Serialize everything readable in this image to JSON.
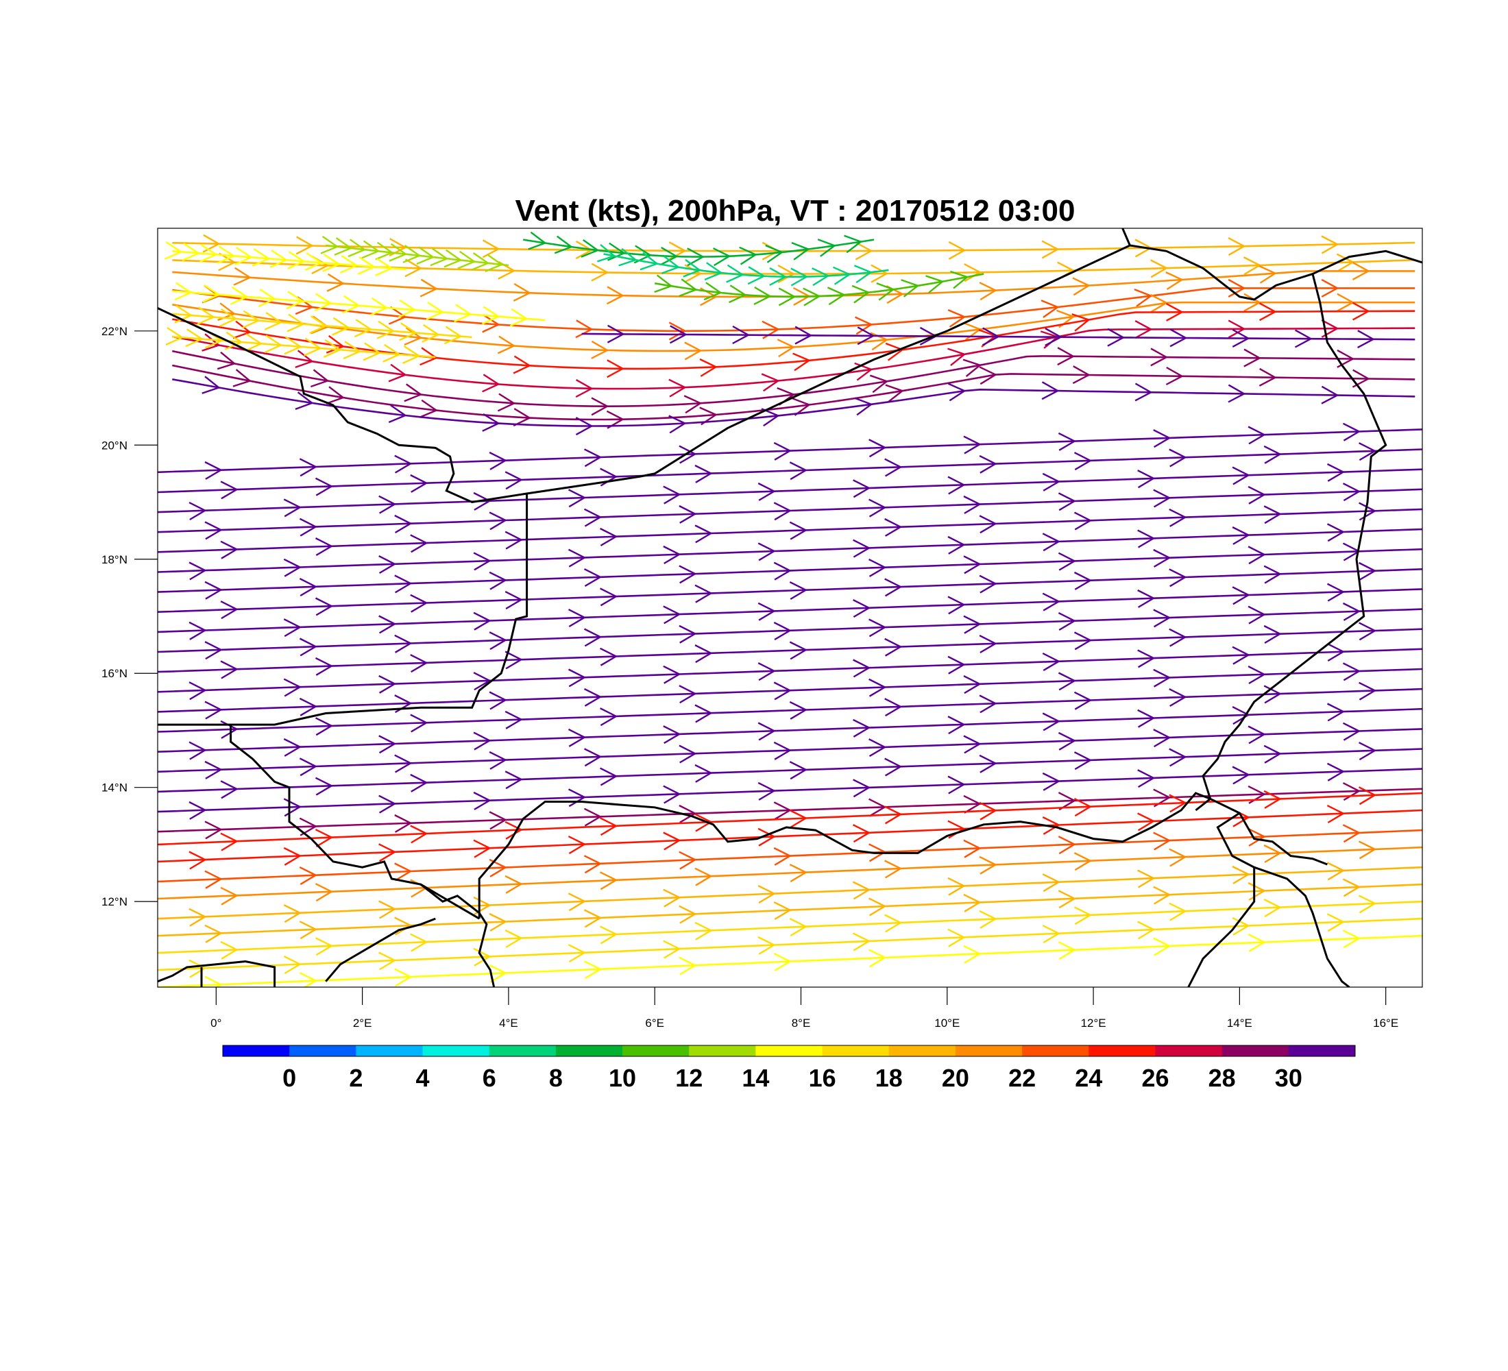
{
  "title": "Vent (kts), 200hPa, VT : 20170512  03:00",
  "map": {
    "lon_range": [
      -0.8,
      16.5
    ],
    "lat_range": [
      10.5,
      23.8
    ],
    "lon_ticks": [
      {
        "value": 0,
        "label": "0°"
      },
      {
        "value": 2,
        "label": "2°E"
      },
      {
        "value": 4,
        "label": "4°E"
      },
      {
        "value": 6,
        "label": "6°E"
      },
      {
        "value": 8,
        "label": "8°E"
      },
      {
        "value": 10,
        "label": "10°E"
      },
      {
        "value": 12,
        "label": "12°E"
      },
      {
        "value": 14,
        "label": "14°E"
      },
      {
        "value": 16,
        "label": "16°E"
      }
    ],
    "lat_ticks": [
      {
        "value": 12,
        "label": "12°N"
      },
      {
        "value": 14,
        "label": "14°N"
      },
      {
        "value": 16,
        "label": "16°N"
      },
      {
        "value": 18,
        "label": "18°N"
      },
      {
        "value": 20,
        "label": "20°N"
      },
      {
        "value": 22,
        "label": "22°N"
      }
    ],
    "borders": [
      [
        [
          -0.8,
          22.4
        ],
        [
          0.2,
          21.8
        ],
        [
          1.15,
          21.2
        ],
        [
          1.2,
          20.9
        ],
        [
          1.6,
          20.7
        ],
        [
          1.8,
          20.4
        ],
        [
          2.2,
          20.2
        ],
        [
          2.5,
          20.0
        ],
        [
          3.0,
          19.95
        ],
        [
          3.2,
          19.8
        ],
        [
          3.25,
          19.5
        ],
        [
          3.15,
          19.2
        ],
        [
          3.5,
          19.0
        ],
        [
          4.25,
          19.15
        ],
        [
          5.3,
          19.35
        ],
        [
          5.8,
          19.45
        ],
        [
          6.0,
          19.5
        ],
        [
          7.0,
          20.3
        ],
        [
          8.0,
          20.9
        ],
        [
          9.0,
          21.5
        ],
        [
          10.0,
          22.0
        ],
        [
          11.0,
          22.6
        ],
        [
          12.0,
          23.2
        ],
        [
          12.5,
          23.5
        ],
        [
          13.0,
          23.4
        ],
        [
          13.5,
          23.1
        ],
        [
          14.0,
          22.6
        ],
        [
          14.2,
          22.55
        ],
        [
          14.5,
          22.8
        ],
        [
          15.0,
          23.0
        ],
        [
          15.5,
          23.3
        ],
        [
          16.0,
          23.4
        ],
        [
          16.5,
          23.2
        ]
      ],
      [
        [
          12.5,
          23.5
        ],
        [
          12.4,
          23.8
        ]
      ],
      [
        [
          15.0,
          23.0
        ],
        [
          15.1,
          22.5
        ],
        [
          15.2,
          21.8
        ],
        [
          15.4,
          21.4
        ],
        [
          15.7,
          20.9
        ],
        [
          15.9,
          20.3
        ],
        [
          16.0,
          20.0
        ],
        [
          15.8,
          19.8
        ],
        [
          15.75,
          19.0
        ],
        [
          15.6,
          18.0
        ],
        [
          15.7,
          17.0
        ],
        [
          15.5,
          16.8
        ],
        [
          15.0,
          16.3
        ],
        [
          14.5,
          15.8
        ],
        [
          14.2,
          15.5
        ],
        [
          14.0,
          15.1
        ],
        [
          13.8,
          14.8
        ],
        [
          13.7,
          14.5
        ],
        [
          13.5,
          14.2
        ],
        [
          13.6,
          13.8
        ],
        [
          13.4,
          13.6
        ]
      ],
      [
        [
          4.25,
          19.15
        ],
        [
          4.25,
          18.5
        ],
        [
          4.25,
          17.5
        ],
        [
          4.25,
          17.0
        ],
        [
          4.1,
          16.95
        ],
        [
          4.0,
          16.4
        ],
        [
          3.9,
          16.0
        ],
        [
          3.6,
          15.7
        ],
        [
          3.5,
          15.4
        ],
        [
          2.8,
          15.4
        ],
        [
          1.5,
          15.3
        ],
        [
          0.8,
          15.1
        ],
        [
          -0.1,
          15.1
        ],
        [
          -0.8,
          15.1
        ]
      ],
      [
        [
          0.2,
          15.1
        ],
        [
          0.2,
          14.8
        ],
        [
          0.5,
          14.5
        ],
        [
          0.8,
          14.1
        ],
        [
          1.0,
          14.0
        ],
        [
          1.0,
          13.4
        ],
        [
          1.3,
          13.1
        ],
        [
          1.6,
          12.7
        ],
        [
          2.0,
          12.6
        ],
        [
          2.3,
          12.7
        ],
        [
          2.4,
          12.4
        ],
        [
          2.8,
          12.3
        ],
        [
          3.1,
          12.0
        ],
        [
          3.3,
          12.1
        ],
        [
          3.6,
          11.8
        ],
        [
          3.7,
          11.6
        ],
        [
          3.6,
          11.1
        ],
        [
          3.75,
          10.8
        ],
        [
          3.8,
          10.5
        ]
      ],
      [
        [
          3.6,
          11.7
        ],
        [
          3.2,
          12.0
        ],
        [
          2.8,
          12.3
        ]
      ],
      [
        [
          3.6,
          11.7
        ],
        [
          3.6,
          12.4
        ],
        [
          4.0,
          13.0
        ],
        [
          4.2,
          13.45
        ],
        [
          4.5,
          13.75
        ],
        [
          5.0,
          13.75
        ],
        [
          5.5,
          13.7
        ],
        [
          6.0,
          13.65
        ],
        [
          6.5,
          13.5
        ],
        [
          6.8,
          13.35
        ],
        [
          7.0,
          13.05
        ],
        [
          7.4,
          13.1
        ],
        [
          7.8,
          13.3
        ],
        [
          8.2,
          13.25
        ],
        [
          8.7,
          12.9
        ],
        [
          9.0,
          12.85
        ],
        [
          9.6,
          12.85
        ],
        [
          10.0,
          13.15
        ],
        [
          10.5,
          13.35
        ],
        [
          11.0,
          13.4
        ],
        [
          11.5,
          13.3
        ],
        [
          12.0,
          13.1
        ],
        [
          12.4,
          13.05
        ],
        [
          12.8,
          13.3
        ],
        [
          13.2,
          13.6
        ],
        [
          13.4,
          13.9
        ],
        [
          13.6,
          13.8
        ]
      ],
      [
        [
          13.6,
          13.8
        ],
        [
          14.0,
          13.55
        ],
        [
          14.2,
          13.1
        ],
        [
          14.45,
          13.05
        ],
        [
          14.7,
          12.8
        ],
        [
          15.0,
          12.75
        ],
        [
          15.2,
          12.65
        ]
      ],
      [
        [
          14.0,
          13.55
        ],
        [
          13.7,
          13.3
        ],
        [
          13.9,
          12.8
        ],
        [
          14.2,
          12.6
        ],
        [
          14.65,
          12.4
        ],
        [
          14.9,
          12.1
        ],
        [
          15.0,
          11.8
        ],
        [
          15.2,
          11.0
        ],
        [
          15.4,
          10.6
        ],
        [
          15.5,
          10.5
        ]
      ],
      [
        [
          14.2,
          12.6
        ],
        [
          14.2,
          12.0
        ],
        [
          13.9,
          11.5
        ],
        [
          13.5,
          11.0
        ],
        [
          13.3,
          10.5
        ]
      ],
      [
        [
          -0.8,
          10.6
        ],
        [
          -0.6,
          10.7
        ],
        [
          -0.4,
          10.85
        ],
        [
          0.0,
          10.9
        ],
        [
          0.4,
          10.95
        ],
        [
          0.8,
          10.85
        ],
        [
          0.8,
          10.5
        ]
      ],
      [
        [
          -0.2,
          10.85
        ],
        [
          -0.2,
          10.5
        ]
      ],
      [
        [
          1.5,
          10.6
        ],
        [
          1.7,
          10.9
        ],
        [
          2.1,
          11.2
        ],
        [
          2.5,
          11.5
        ],
        [
          2.8,
          11.6
        ],
        [
          3.0,
          11.7
        ]
      ]
    ],
    "streamlines": [
      {
        "y0": 23.55,
        "shape": 0,
        "value": 21,
        "x0": -0.6,
        "x1": 16.4
      },
      {
        "y0": 23.25,
        "shape": 1,
        "value": 20,
        "x0": -0.6,
        "x1": 16.4
      },
      {
        "y0": 23.05,
        "shape": 2,
        "value": 22,
        "x0": -0.6,
        "x1": 16.4
      },
      {
        "y0": 22.75,
        "shape": 3,
        "value": 24,
        "x0": -0.6,
        "x1": 16.4
      },
      {
        "y0": 22.5,
        "shape": 4,
        "value": 22,
        "x0": -0.6,
        "x1": 16.4
      },
      {
        "y0": 22.25,
        "shape": 5,
        "value": 26,
        "x0": -0.6,
        "x1": 16.4
      },
      {
        "y0": 21.95,
        "shape": 6,
        "value": 28,
        "x0": -0.6,
        "x1": 16.4
      },
      {
        "y0": 21.7,
        "shape": 7,
        "value": 30,
        "x0": -0.6,
        "x1": 16.4
      },
      {
        "y0": 21.45,
        "shape": 8,
        "value": 31,
        "x0": -0.6,
        "x1": 16.4
      },
      {
        "y0": 21.2,
        "shape": 9,
        "value": 32,
        "x0": -0.6,
        "x1": 16.4
      },
      {
        "y0": 22.0,
        "shape": 10,
        "value": 33,
        "x0": 5.0,
        "x1": 16.4
      },
      {
        "y0": 23.6,
        "shape": 11,
        "value": 11,
        "x0": 4.2,
        "x1": 9.0
      },
      {
        "y0": 23.35,
        "shape": 12,
        "value": 8,
        "x0": 5.3,
        "x1": 9.2
      },
      {
        "y0": 23.0,
        "shape": 12,
        "value": 12,
        "x0": 6.0,
        "x1": 10.5
      },
      {
        "y0": 23.5,
        "shape": 13,
        "value": 14,
        "x0": 1.5,
        "x1": 4.0
      },
      {
        "y0": 23.4,
        "shape": 14,
        "value": 16,
        "x0": -0.6,
        "x1": 2.6
      },
      {
        "y0": 22.7,
        "shape": 14,
        "value": 17,
        "x0": -0.6,
        "x1": 4.5
      },
      {
        "y0": 22.3,
        "shape": 14,
        "value": 18,
        "x0": -0.6,
        "x1": 3.5
      },
      {
        "y0": 21.9,
        "shape": 14,
        "value": 19,
        "x0": -0.6,
        "x1": 3.0
      },
      {
        "y0": 19.9,
        "shape": 15,
        "value": 33,
        "x0": -0.8,
        "x1": 16.5
      },
      {
        "y0": 19.55,
        "shape": 15,
        "value": 33,
        "x0": -0.8,
        "x1": 16.5
      },
      {
        "y0": 19.2,
        "shape": 15,
        "value": 33,
        "x0": -0.8,
        "x1": 16.5
      },
      {
        "y0": 18.85,
        "shape": 15,
        "value": 33,
        "x0": -0.8,
        "x1": 16.5
      },
      {
        "y0": 18.5,
        "shape": 15,
        "value": 33,
        "x0": -0.8,
        "x1": 16.5
      },
      {
        "y0": 18.15,
        "shape": 15,
        "value": 33,
        "x0": -0.8,
        "x1": 16.5
      },
      {
        "y0": 17.8,
        "shape": 15,
        "value": 33,
        "x0": -0.8,
        "x1": 16.5
      },
      {
        "y0": 17.45,
        "shape": 15,
        "value": 33,
        "x0": -0.8,
        "x1": 16.5
      },
      {
        "y0": 17.1,
        "shape": 15,
        "value": 33,
        "x0": -0.8,
        "x1": 16.5
      },
      {
        "y0": 16.75,
        "shape": 15,
        "value": 33,
        "x0": -0.8,
        "x1": 16.5
      },
      {
        "y0": 16.4,
        "shape": 15,
        "value": 33,
        "x0": -0.8,
        "x1": 16.5
      },
      {
        "y0": 16.05,
        "shape": 15,
        "value": 33,
        "x0": -0.8,
        "x1": 16.5
      },
      {
        "y0": 15.7,
        "shape": 15,
        "value": 33,
        "x0": -0.8,
        "x1": 16.5
      },
      {
        "y0": 15.35,
        "shape": 15,
        "value": 33,
        "x0": -0.8,
        "x1": 16.5
      },
      {
        "y0": 15.0,
        "shape": 15,
        "value": 33,
        "x0": -0.8,
        "x1": 16.5
      },
      {
        "y0": 14.65,
        "shape": 15,
        "value": 33,
        "x0": -0.8,
        "x1": 16.5
      },
      {
        "y0": 14.3,
        "shape": 15,
        "value": 33,
        "x0": -0.8,
        "x1": 16.5
      },
      {
        "y0": 13.95,
        "shape": 15,
        "value": 32,
        "x0": -0.8,
        "x1": 16.5
      },
      {
        "y0": 13.6,
        "shape": 15,
        "value": 31,
        "x0": -0.8,
        "x1": 16.5
      },
      {
        "y0": 13.25,
        "shape": 16,
        "value": 27,
        "x0": -0.8,
        "x1": 16.5
      },
      {
        "y0": 12.95,
        "shape": 16,
        "value": 26,
        "x0": -0.8,
        "x1": 16.5
      },
      {
        "y0": 12.6,
        "shape": 16,
        "value": 25,
        "x0": -0.8,
        "x1": 16.5
      },
      {
        "y0": 12.3,
        "shape": 16,
        "value": 23,
        "x0": -0.8,
        "x1": 16.5
      },
      {
        "y0": 11.95,
        "shape": 16,
        "value": 21,
        "x0": -0.8,
        "x1": 16.5
      },
      {
        "y0": 11.65,
        "shape": 16,
        "value": 20,
        "x0": -0.8,
        "x1": 16.5
      },
      {
        "y0": 11.35,
        "shape": 16,
        "value": 19,
        "x0": -0.8,
        "x1": 16.5
      },
      {
        "y0": 11.05,
        "shape": 16,
        "value": 18,
        "x0": -0.8,
        "x1": 16.5
      },
      {
        "y0": 10.75,
        "shape": 16,
        "value": 17,
        "x0": -0.8,
        "x1": 16.5
      }
    ]
  },
  "colorbar": {
    "colors": [
      "#0000ff",
      "#0060ff",
      "#00b4ff",
      "#00f0e0",
      "#00d27a",
      "#00b030",
      "#48c000",
      "#a0dc00",
      "#ffff00",
      "#ffdc00",
      "#ffb400",
      "#ff8c00",
      "#ff5000",
      "#ff1400",
      "#d2003c",
      "#8c0064",
      "#5a0096"
    ],
    "labels": [
      "0",
      "2",
      "4",
      "6",
      "8",
      "10",
      "12",
      "14",
      "16",
      "18",
      "20",
      "22",
      "24",
      "26",
      "28",
      "30"
    ]
  }
}
